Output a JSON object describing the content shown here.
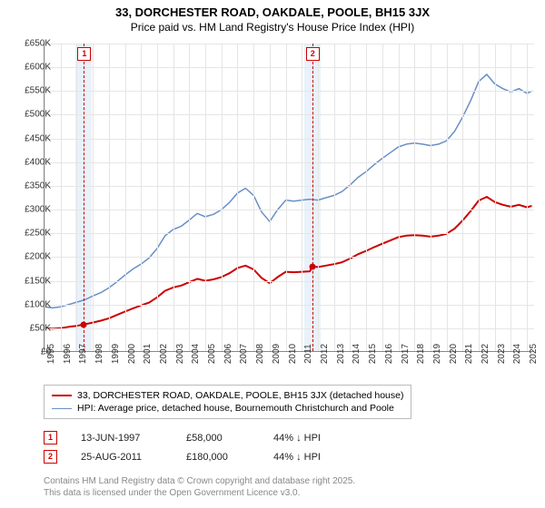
{
  "title_line1": "33, DORCHESTER ROAD, OAKDALE, POOLE, BH15 3JX",
  "title_line2": "Price paid vs. HM Land Registry's House Price Index (HPI)",
  "chart": {
    "type": "line",
    "background_color": "#ffffff",
    "grid_color": "#e5e5e5",
    "axis_color": "#888888",
    "x_range": [
      1995,
      2025.5
    ],
    "y_range": [
      0,
      650000
    ],
    "y_ticks": [
      0,
      50000,
      100000,
      150000,
      200000,
      250000,
      300000,
      350000,
      400000,
      450000,
      500000,
      550000,
      600000,
      650000
    ],
    "y_tick_labels": [
      "£0",
      "£50K",
      "£100K",
      "£150K",
      "£200K",
      "£250K",
      "£300K",
      "£350K",
      "£400K",
      "£450K",
      "£500K",
      "£550K",
      "£600K",
      "£650K"
    ],
    "x_ticks": [
      1995,
      1996,
      1997,
      1998,
      1999,
      2000,
      2001,
      2002,
      2003,
      2004,
      2005,
      2006,
      2007,
      2008,
      2009,
      2010,
      2011,
      2012,
      2013,
      2014,
      2015,
      2016,
      2017,
      2018,
      2019,
      2020,
      2021,
      2022,
      2023,
      2024,
      2025
    ],
    "label_fontsize": 10,
    "title_fontsize": 13,
    "sale_band_color": "#dbe9f6",
    "sale_line_color": "#cc0000",
    "series": {
      "hpi": {
        "label": "HPI: Average price, detached house, Bournemouth Christchurch and Poole",
        "color": "#6a8fc5",
        "line_width": 1.5,
        "points": [
          [
            1995,
            95000
          ],
          [
            1995.5,
            93000
          ],
          [
            1996,
            95000
          ],
          [
            1996.5,
            100000
          ],
          [
            1997,
            105000
          ],
          [
            1997.5,
            110000
          ],
          [
            1998,
            118000
          ],
          [
            1998.5,
            125000
          ],
          [
            1999,
            135000
          ],
          [
            1999.5,
            148000
          ],
          [
            2000,
            162000
          ],
          [
            2000.5,
            175000
          ],
          [
            2001,
            185000
          ],
          [
            2001.5,
            198000
          ],
          [
            2002,
            218000
          ],
          [
            2002.5,
            245000
          ],
          [
            2003,
            258000
          ],
          [
            2003.5,
            265000
          ],
          [
            2004,
            278000
          ],
          [
            2004.5,
            292000
          ],
          [
            2005,
            285000
          ],
          [
            2005.5,
            290000
          ],
          [
            2006,
            300000
          ],
          [
            2006.5,
            315000
          ],
          [
            2007,
            335000
          ],
          [
            2007.5,
            345000
          ],
          [
            2008,
            330000
          ],
          [
            2008.5,
            295000
          ],
          [
            2009,
            275000
          ],
          [
            2009.5,
            300000
          ],
          [
            2010,
            320000
          ],
          [
            2010.5,
            318000
          ],
          [
            2011,
            320000
          ],
          [
            2011.5,
            322000
          ],
          [
            2012,
            320000
          ],
          [
            2012.5,
            325000
          ],
          [
            2013,
            330000
          ],
          [
            2013.5,
            338000
          ],
          [
            2014,
            352000
          ],
          [
            2014.5,
            368000
          ],
          [
            2015,
            380000
          ],
          [
            2015.5,
            395000
          ],
          [
            2016,
            408000
          ],
          [
            2016.5,
            420000
          ],
          [
            2017,
            432000
          ],
          [
            2017.5,
            438000
          ],
          [
            2018,
            440000
          ],
          [
            2018.5,
            438000
          ],
          [
            2019,
            435000
          ],
          [
            2019.5,
            438000
          ],
          [
            2020,
            445000
          ],
          [
            2020.5,
            465000
          ],
          [
            2021,
            495000
          ],
          [
            2021.5,
            530000
          ],
          [
            2022,
            570000
          ],
          [
            2022.5,
            585000
          ],
          [
            2023,
            565000
          ],
          [
            2023.5,
            555000
          ],
          [
            2024,
            548000
          ],
          [
            2024.5,
            555000
          ],
          [
            2025,
            545000
          ],
          [
            2025.3,
            550000
          ]
        ]
      },
      "property": {
        "label": "33, DORCHESTER ROAD, OAKDALE, POOLE, BH15 3JX (detached house)",
        "color": "#cc0000",
        "line_width": 2,
        "points": [
          [
            1995,
            50000
          ],
          [
            1995.5,
            49000
          ],
          [
            1996,
            50000
          ],
          [
            1996.5,
            53000
          ],
          [
            1997,
            55000
          ],
          [
            1997.45,
            58000
          ],
          [
            1998,
            62000
          ],
          [
            1998.5,
            66000
          ],
          [
            1999,
            71000
          ],
          [
            1999.5,
            78000
          ],
          [
            2000,
            85000
          ],
          [
            2000.5,
            92000
          ],
          [
            2001,
            98000
          ],
          [
            2001.5,
            104000
          ],
          [
            2002,
            115000
          ],
          [
            2002.5,
            129000
          ],
          [
            2003,
            136000
          ],
          [
            2003.5,
            140000
          ],
          [
            2004,
            147000
          ],
          [
            2004.5,
            154000
          ],
          [
            2005,
            150000
          ],
          [
            2005.5,
            153000
          ],
          [
            2006,
            158000
          ],
          [
            2006.5,
            166000
          ],
          [
            2007,
            177000
          ],
          [
            2007.5,
            182000
          ],
          [
            2008,
            174000
          ],
          [
            2008.5,
            156000
          ],
          [
            2009,
            145000
          ],
          [
            2009.5,
            158000
          ],
          [
            2010,
            169000
          ],
          [
            2010.5,
            168000
          ],
          [
            2011,
            169000
          ],
          [
            2011.5,
            170000
          ],
          [
            2011.65,
            180000
          ],
          [
            2012,
            179000
          ],
          [
            2012.5,
            182000
          ],
          [
            2013,
            185000
          ],
          [
            2013.5,
            189000
          ],
          [
            2014,
            197000
          ],
          [
            2014.5,
            206000
          ],
          [
            2015,
            213000
          ],
          [
            2015.5,
            221000
          ],
          [
            2016,
            228000
          ],
          [
            2016.5,
            235000
          ],
          [
            2017,
            242000
          ],
          [
            2017.5,
            245000
          ],
          [
            2018,
            246000
          ],
          [
            2018.5,
            245000
          ],
          [
            2019,
            243000
          ],
          [
            2019.5,
            245000
          ],
          [
            2020,
            249000
          ],
          [
            2020.5,
            260000
          ],
          [
            2021,
            277000
          ],
          [
            2021.5,
            297000
          ],
          [
            2022,
            319000
          ],
          [
            2022.5,
            327000
          ],
          [
            2023,
            316000
          ],
          [
            2023.5,
            310000
          ],
          [
            2024,
            306000
          ],
          [
            2024.5,
            310000
          ],
          [
            2025,
            305000
          ],
          [
            2025.3,
            308000
          ]
        ]
      }
    },
    "sales": [
      {
        "n": "1",
        "x": 1997.45,
        "price": 58000,
        "date": "13-JUN-1997",
        "price_label": "£58,000",
        "delta": "44% ↓ HPI"
      },
      {
        "n": "2",
        "x": 2011.65,
        "price": 180000,
        "date": "25-AUG-2011",
        "price_label": "£180,000",
        "delta": "44% ↓ HPI"
      }
    ]
  },
  "footnote_line1": "Contains HM Land Registry data © Crown copyright and database right 2025.",
  "footnote_line2": "This data is licensed under the Open Government Licence v3.0."
}
